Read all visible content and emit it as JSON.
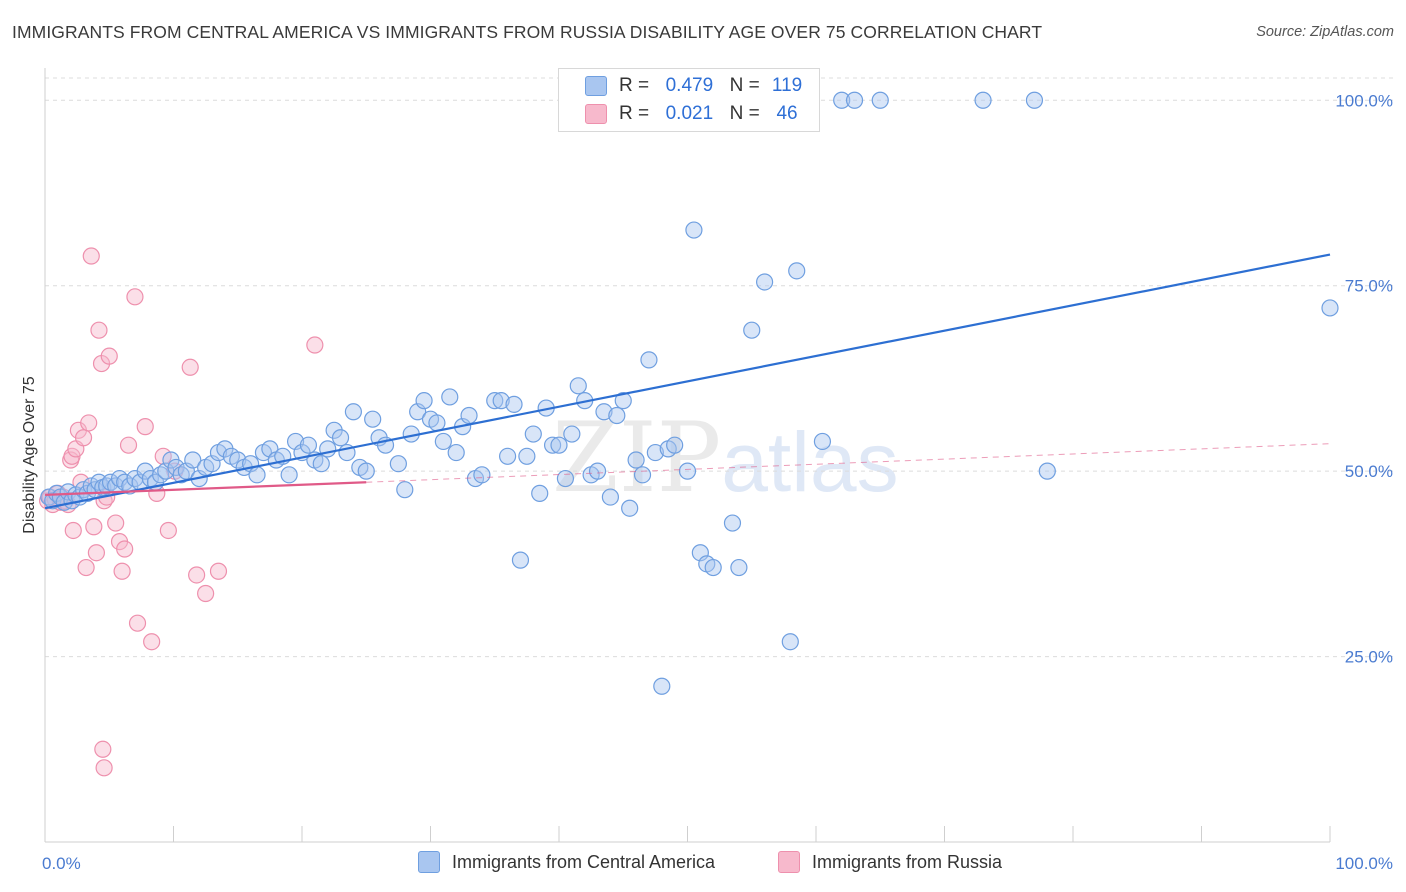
{
  "header": {
    "title": "IMMIGRANTS FROM CENTRAL AMERICA VS IMMIGRANTS FROM RUSSIA DISABILITY AGE OVER 75 CORRELATION CHART",
    "source": "Source: ZipAtlas.com"
  },
  "watermark": {
    "zip": "ZIP",
    "atlas": "atlas"
  },
  "legend": {
    "rows": [
      {
        "r_label": "R =",
        "r_value": "0.479",
        "n_label": "N =",
        "n_value": "119"
      },
      {
        "r_label": "R =",
        "r_value": "0.021",
        "n_label": "N =",
        "n_value": "46"
      }
    ]
  },
  "bottom_legend": {
    "items": [
      {
        "label": "Immigrants from Central America"
      },
      {
        "label": "Immigrants from Russia"
      }
    ]
  },
  "colors": {
    "blue_fill": "#a9c6f0",
    "blue_stroke": "#6f9fe0",
    "blue_line": "#2d6fd2",
    "pink_fill": "#f7b9cc",
    "pink_stroke": "#ee90ad",
    "pink_line": "#e05a88",
    "grid": "#dcdcdc",
    "axis_text": "#4a7bd0"
  },
  "chart_data": {
    "type": "scatter",
    "title": "IMMIGRANTS FROM CENTRAL AMERICA VS IMMIGRANTS FROM RUSSIA DISABILITY AGE OVER 75 CORRELATION CHART",
    "xlabel": "",
    "ylabel": "Disability Age Over 75",
    "xlim": [
      0,
      100
    ],
    "ylim": [
      0,
      103
    ],
    "x_tick_labels": [
      "0.0%",
      "100.0%"
    ],
    "y_ticks": [
      25,
      50,
      75,
      100
    ],
    "y_tick_labels": [
      "25.0%",
      "50.0%",
      "75.0%",
      "100.0%"
    ],
    "grid": true,
    "legend_position": "top-center",
    "series": [
      {
        "name": "Immigrants from Central America",
        "R": 0.479,
        "N": 119,
        "trend": {
          "x": [
            0,
            100
          ],
          "y": [
            45.0,
            79.2
          ]
        },
        "points": [
          [
            0.3,
            46.5
          ],
          [
            0.6,
            46.0
          ],
          [
            0.9,
            47.0
          ],
          [
            1.2,
            46.5
          ],
          [
            1.5,
            45.8
          ],
          [
            1.8,
            47.2
          ],
          [
            2.1,
            46.0
          ],
          [
            2.4,
            46.8
          ],
          [
            2.7,
            46.5
          ],
          [
            3.0,
            47.5
          ],
          [
            3.3,
            47.0
          ],
          [
            3.6,
            48.0
          ],
          [
            3.9,
            47.5
          ],
          [
            4.2,
            48.5
          ],
          [
            4.5,
            47.8
          ],
          [
            4.8,
            48.0
          ],
          [
            5.1,
            48.5
          ],
          [
            5.5,
            48.0
          ],
          [
            5.8,
            49.0
          ],
          [
            6.2,
            48.5
          ],
          [
            6.6,
            48.0
          ],
          [
            7.0,
            49.0
          ],
          [
            7.4,
            48.5
          ],
          [
            7.8,
            50.0
          ],
          [
            8.2,
            49.0
          ],
          [
            8.6,
            48.5
          ],
          [
            9.0,
            49.5
          ],
          [
            9.4,
            50.0
          ],
          [
            9.8,
            51.5
          ],
          [
            10.2,
            50.5
          ],
          [
            10.6,
            49.5
          ],
          [
            11.0,
            50.0
          ],
          [
            11.5,
            51.5
          ],
          [
            12.0,
            49.0
          ],
          [
            12.5,
            50.5
          ],
          [
            13.0,
            51.0
          ],
          [
            13.5,
            52.5
          ],
          [
            14.0,
            53.0
          ],
          [
            14.5,
            52.0
          ],
          [
            15.0,
            51.5
          ],
          [
            15.5,
            50.5
          ],
          [
            16.0,
            51.0
          ],
          [
            16.5,
            49.5
          ],
          [
            17.0,
            52.5
          ],
          [
            17.5,
            53.0
          ],
          [
            18.0,
            51.5
          ],
          [
            18.5,
            52.0
          ],
          [
            19.0,
            49.5
          ],
          [
            19.5,
            54.0
          ],
          [
            20.0,
            52.5
          ],
          [
            20.5,
            53.5
          ],
          [
            21.0,
            51.5
          ],
          [
            21.5,
            51.0
          ],
          [
            22.0,
            53.0
          ],
          [
            22.5,
            55.5
          ],
          [
            23.0,
            54.5
          ],
          [
            23.5,
            52.5
          ],
          [
            24.0,
            58.0
          ],
          [
            24.5,
            50.5
          ],
          [
            25.0,
            50.0
          ],
          [
            25.5,
            57.0
          ],
          [
            26.0,
            54.5
          ],
          [
            26.5,
            53.5
          ],
          [
            27.5,
            51.0
          ],
          [
            28.0,
            47.5
          ],
          [
            28.5,
            55.0
          ],
          [
            29.0,
            58.0
          ],
          [
            29.5,
            59.5
          ],
          [
            30.0,
            57.0
          ],
          [
            30.5,
            56.5
          ],
          [
            31.0,
            54.0
          ],
          [
            31.5,
            60.0
          ],
          [
            32.0,
            52.5
          ],
          [
            32.5,
            56.0
          ],
          [
            33.0,
            57.5
          ],
          [
            33.5,
            49.0
          ],
          [
            34.0,
            49.5
          ],
          [
            35.0,
            59.5
          ],
          [
            35.5,
            59.5
          ],
          [
            36.0,
            52.0
          ],
          [
            36.5,
            59.0
          ],
          [
            37.0,
            38.0
          ],
          [
            37.5,
            52.0
          ],
          [
            38.0,
            55.0
          ],
          [
            38.5,
            47.0
          ],
          [
            39.0,
            58.5
          ],
          [
            39.5,
            53.5
          ],
          [
            40.0,
            53.5
          ],
          [
            40.5,
            49.0
          ],
          [
            41.0,
            55.0
          ],
          [
            41.5,
            61.5
          ],
          [
            42.0,
            59.5
          ],
          [
            42.5,
            49.5
          ],
          [
            43.0,
            50.0
          ],
          [
            43.5,
            58.0
          ],
          [
            44.0,
            46.5
          ],
          [
            44.5,
            57.5
          ],
          [
            45.0,
            59.5
          ],
          [
            45.5,
            45.0
          ],
          [
            46.0,
            51.5
          ],
          [
            46.5,
            49.5
          ],
          [
            47.0,
            65.0
          ],
          [
            47.5,
            52.5
          ],
          [
            48.0,
            21.0
          ],
          [
            48.5,
            53.0
          ],
          [
            49.0,
            53.5
          ],
          [
            50.0,
            50.0
          ],
          [
            50.5,
            82.5
          ],
          [
            51.0,
            39.0
          ],
          [
            51.5,
            37.5
          ],
          [
            52.0,
            37.0
          ],
          [
            53.5,
            43.0
          ],
          [
            54.0,
            37.0
          ],
          [
            55.0,
            69.0
          ],
          [
            56.0,
            75.5
          ],
          [
            58.0,
            27.0
          ],
          [
            58.5,
            77.0
          ],
          [
            60.5,
            54.0
          ],
          [
            62.0,
            100.0
          ],
          [
            63.0,
            100.0
          ],
          [
            65.0,
            100.0
          ],
          [
            73.0,
            100.0
          ],
          [
            77.0,
            100.0
          ],
          [
            78.0,
            50.0
          ],
          [
            100.0,
            72.0
          ]
        ]
      },
      {
        "name": "Immigrants from Russia",
        "R": 0.021,
        "N": 46,
        "trend": {
          "x": [
            0,
            25
          ],
          "y": [
            46.8,
            48.5
          ]
        },
        "trend_dashed": {
          "x": [
            25,
            100
          ],
          "y": [
            48.5,
            53.7
          ]
        },
        "points": [
          [
            0.2,
            46.0
          ],
          [
            0.4,
            46.5
          ],
          [
            0.6,
            45.5
          ],
          [
            0.8,
            46.2
          ],
          [
            1.0,
            47.0
          ],
          [
            1.2,
            45.8
          ],
          [
            1.4,
            46.5
          ],
          [
            1.6,
            46.0
          ],
          [
            1.8,
            45.5
          ],
          [
            2.0,
            51.5
          ],
          [
            2.1,
            52.0
          ],
          [
            2.2,
            42.0
          ],
          [
            2.4,
            53.0
          ],
          [
            2.6,
            55.5
          ],
          [
            2.8,
            48.5
          ],
          [
            3.0,
            54.5
          ],
          [
            3.2,
            37.0
          ],
          [
            3.4,
            56.5
          ],
          [
            3.6,
            79.0
          ],
          [
            3.8,
            42.5
          ],
          [
            4.0,
            39.0
          ],
          [
            4.2,
            69.0
          ],
          [
            4.4,
            64.5
          ],
          [
            4.6,
            46.0
          ],
          [
            4.8,
            46.5
          ],
          [
            5.0,
            65.5
          ],
          [
            5.5,
            43.0
          ],
          [
            5.8,
            40.5
          ],
          [
            6.0,
            36.5
          ],
          [
            6.2,
            39.5
          ],
          [
            6.5,
            53.5
          ],
          [
            7.0,
            73.5
          ],
          [
            7.2,
            29.5
          ],
          [
            7.8,
            56.0
          ],
          [
            8.3,
            27.0
          ],
          [
            8.7,
            47.0
          ],
          [
            9.2,
            52.0
          ],
          [
            9.6,
            42.0
          ],
          [
            10.1,
            50.0
          ],
          [
            11.3,
            64.0
          ],
          [
            11.8,
            36.0
          ],
          [
            12.5,
            33.5
          ],
          [
            13.5,
            36.5
          ],
          [
            21.0,
            67.0
          ],
          [
            4.5,
            12.5
          ],
          [
            4.6,
            10.0
          ]
        ]
      }
    ]
  }
}
